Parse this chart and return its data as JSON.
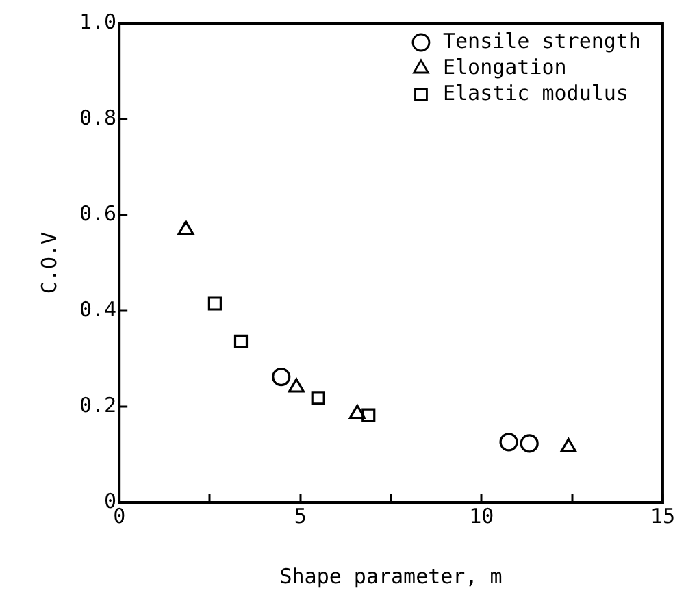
{
  "chart_data": {
    "type": "scatter",
    "xlabel": "Shape parameter, m",
    "ylabel": "C.O.V",
    "xlim": [
      0,
      15
    ],
    "ylim": [
      0,
      1
    ],
    "xticks": [
      0,
      {
        "value": 2.5,
        "label": null
      },
      5,
      {
        "value": 7.5,
        "label": null
      },
      10,
      {
        "value": 12.5,
        "label": null
      },
      15
    ],
    "yticks": [
      0,
      0.2,
      0.4,
      0.6,
      0.8,
      {
        "value": 1,
        "label": "1.0"
      }
    ],
    "grid": false,
    "legend": "top right",
    "series": [
      {
        "name": "Tensile strength",
        "color": "#000000",
        "marker": "circle",
        "x": [
          4.47,
          10.75,
          11.32
        ],
        "values": [
          0.262,
          0.126,
          0.123
        ]
      },
      {
        "name": "Elongation",
        "color": "#000000",
        "marker": "triangle",
        "x": [
          1.84,
          4.89,
          6.57,
          12.4
        ],
        "values": [
          0.569,
          0.24,
          0.185,
          0.115
        ]
      },
      {
        "name": "Elastic modulus",
        "color": "#000000",
        "marker": "square",
        "x": [
          2.64,
          3.36,
          5.49,
          6.88
        ],
        "values": [
          0.415,
          0.336,
          0.218,
          0.182
        ]
      }
    ]
  }
}
